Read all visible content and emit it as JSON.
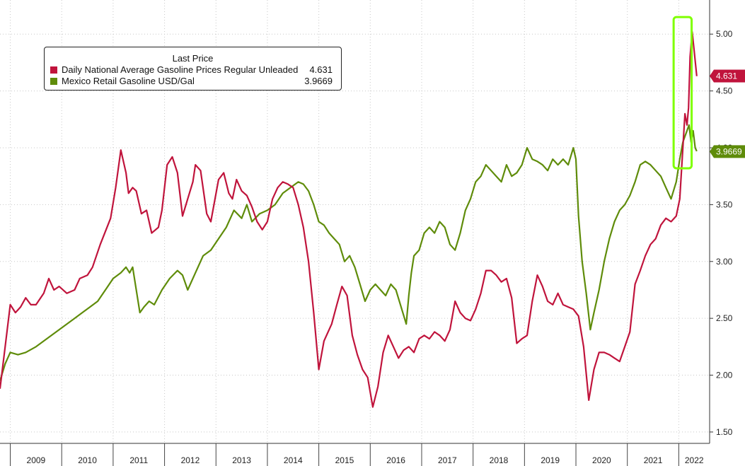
{
  "chart_data": {
    "type": "line",
    "title": "",
    "legend": {
      "title": "Last Price",
      "placement": "top-left"
    },
    "ylim": [
      1.4,
      5.3
    ],
    "y_ticks": [
      "1.50",
      "2.00",
      "2.50",
      "3.00",
      "3.50",
      "4.00",
      "4.50",
      "5.00"
    ],
    "x_ticks": [
      "2009",
      "2010",
      "2011",
      "2012",
      "2013",
      "2014",
      "2015",
      "2016",
      "2017",
      "2018",
      "2019",
      "2020",
      "2021",
      "2022"
    ],
    "x_range": [
      2008.8,
      2022.6
    ],
    "grid": true,
    "highlight_box": {
      "x": [
        2021.9,
        2022.25
      ],
      "y": [
        3.82,
        5.15
      ],
      "color": "#7fff00"
    },
    "series": [
      {
        "name": "Daily National Average Gasoline Prices Regular Unleaded",
        "last_value": "4.631",
        "color": "#c0143c",
        "x": [
          2008.8,
          2008.9,
          2009.0,
          2009.1,
          2009.2,
          2009.3,
          2009.4,
          2009.5,
          2009.65,
          2009.75,
          2009.85,
          2009.95,
          2010.1,
          2010.25,
          2010.35,
          2010.5,
          2010.6,
          2010.75,
          2010.95,
          2011.05,
          2011.15,
          2011.25,
          2011.3,
          2011.38,
          2011.45,
          2011.55,
          2011.65,
          2011.75,
          2011.88,
          2011.95,
          2012.05,
          2012.15,
          2012.25,
          2012.35,
          2012.45,
          2012.55,
          2012.6,
          2012.7,
          2012.82,
          2012.9,
          2013.05,
          2013.15,
          2013.25,
          2013.32,
          2013.4,
          2013.5,
          2013.6,
          2013.7,
          2013.8,
          2013.9,
          2014.0,
          2014.1,
          2014.2,
          2014.3,
          2014.4,
          2014.5,
          2014.6,
          2014.7,
          2014.8,
          2014.9,
          2015.0,
          2015.1,
          2015.25,
          2015.35,
          2015.45,
          2015.55,
          2015.65,
          2015.75,
          2015.85,
          2015.95,
          2016.05,
          2016.15,
          2016.25,
          2016.35,
          2016.45,
          2016.55,
          2016.65,
          2016.75,
          2016.85,
          2016.95,
          2017.05,
          2017.15,
          2017.25,
          2017.35,
          2017.45,
          2017.55,
          2017.65,
          2017.75,
          2017.85,
          2017.95,
          2018.05,
          2018.15,
          2018.25,
          2018.35,
          2018.45,
          2018.55,
          2018.65,
          2018.75,
          2018.85,
          2018.95,
          2019.05,
          2019.15,
          2019.25,
          2019.35,
          2019.45,
          2019.55,
          2019.65,
          2019.75,
          2019.85,
          2019.95,
          2020.05,
          2020.15,
          2020.25,
          2020.35,
          2020.45,
          2020.55,
          2020.65,
          2020.75,
          2020.85,
          2020.95,
          2021.05,
          2021.15,
          2021.25,
          2021.35,
          2021.45,
          2021.55,
          2021.65,
          2021.75,
          2021.85,
          2021.95,
          2022.02,
          2022.08,
          2022.12,
          2022.16,
          2022.19,
          2022.22,
          2022.26,
          2022.3,
          2022.35
        ],
        "values": [
          1.88,
          2.25,
          2.62,
          2.55,
          2.6,
          2.68,
          2.62,
          2.62,
          2.72,
          2.85,
          2.75,
          2.78,
          2.72,
          2.75,
          2.85,
          2.88,
          2.95,
          3.15,
          3.38,
          3.65,
          3.98,
          3.78,
          3.6,
          3.65,
          3.62,
          3.42,
          3.45,
          3.25,
          3.3,
          3.45,
          3.85,
          3.92,
          3.78,
          3.4,
          3.55,
          3.7,
          3.85,
          3.8,
          3.42,
          3.35,
          3.72,
          3.78,
          3.6,
          3.55,
          3.72,
          3.62,
          3.58,
          3.48,
          3.35,
          3.28,
          3.35,
          3.55,
          3.65,
          3.7,
          3.68,
          3.65,
          3.5,
          3.3,
          3.0,
          2.55,
          2.05,
          2.3,
          2.45,
          2.62,
          2.78,
          2.7,
          2.35,
          2.18,
          2.05,
          1.98,
          1.72,
          1.9,
          2.2,
          2.35,
          2.25,
          2.15,
          2.22,
          2.25,
          2.2,
          2.32,
          2.35,
          2.32,
          2.38,
          2.35,
          2.3,
          2.4,
          2.65,
          2.55,
          2.5,
          2.48,
          2.58,
          2.72,
          2.92,
          2.92,
          2.88,
          2.82,
          2.85,
          2.68,
          2.28,
          2.32,
          2.35,
          2.65,
          2.88,
          2.78,
          2.65,
          2.62,
          2.72,
          2.62,
          2.6,
          2.58,
          2.52,
          2.25,
          1.78,
          2.05,
          2.2,
          2.2,
          2.18,
          2.15,
          2.12,
          2.25,
          2.38,
          2.8,
          2.92,
          3.05,
          3.15,
          3.2,
          3.32,
          3.38,
          3.35,
          3.4,
          3.55,
          4.0,
          4.3,
          4.2,
          4.35,
          4.8,
          5.02,
          4.85,
          4.63
        ]
      },
      {
        "name": "Mexico Retail Gasoline USD/Gal",
        "last_value": "3.9669",
        "color": "#5f8c0a",
        "x": [
          2008.8,
          2008.9,
          2009.0,
          2009.15,
          2009.3,
          2009.5,
          2009.65,
          2009.8,
          2009.95,
          2010.1,
          2010.25,
          2010.4,
          2010.55,
          2010.7,
          2010.85,
          2011.0,
          2011.15,
          2011.25,
          2011.32,
          2011.38,
          2011.45,
          2011.52,
          2011.6,
          2011.7,
          2011.8,
          2011.95,
          2012.1,
          2012.25,
          2012.35,
          2012.45,
          2012.6,
          2012.75,
          2012.9,
          2013.05,
          2013.2,
          2013.35,
          2013.5,
          2013.6,
          2013.7,
          2013.85,
          2014.0,
          2014.15,
          2014.3,
          2014.45,
          2014.6,
          2014.7,
          2014.8,
          2014.9,
          2015.0,
          2015.1,
          2015.2,
          2015.3,
          2015.4,
          2015.5,
          2015.6,
          2015.7,
          2015.8,
          2015.9,
          2016.0,
          2016.1,
          2016.2,
          2016.3,
          2016.4,
          2016.5,
          2016.6,
          2016.7,
          2016.75,
          2016.8,
          2016.85,
          2016.95,
          2017.05,
          2017.15,
          2017.25,
          2017.35,
          2017.45,
          2017.55,
          2017.65,
          2017.75,
          2017.85,
          2017.95,
          2018.05,
          2018.15,
          2018.25,
          2018.35,
          2018.45,
          2018.55,
          2018.65,
          2018.75,
          2018.85,
          2018.95,
          2019.05,
          2019.15,
          2019.25,
          2019.35,
          2019.45,
          2019.55,
          2019.65,
          2019.75,
          2019.85,
          2019.95,
          2020.0,
          2020.05,
          2020.12,
          2020.2,
          2020.28,
          2020.35,
          2020.45,
          2020.55,
          2020.65,
          2020.75,
          2020.85,
          2020.95,
          2021.05,
          2021.15,
          2021.25,
          2021.35,
          2021.45,
          2021.55,
          2021.65,
          2021.75,
          2021.85,
          2021.95,
          2022.02,
          2022.08,
          2022.12,
          2022.16,
          2022.2,
          2022.24,
          2022.28,
          2022.32,
          2022.35
        ],
        "values": [
          1.95,
          2.1,
          2.2,
          2.18,
          2.2,
          2.25,
          2.3,
          2.35,
          2.4,
          2.45,
          2.5,
          2.55,
          2.6,
          2.65,
          2.75,
          2.85,
          2.9,
          2.95,
          2.9,
          2.95,
          2.75,
          2.55,
          2.6,
          2.65,
          2.62,
          2.75,
          2.85,
          2.92,
          2.88,
          2.75,
          2.9,
          3.05,
          3.1,
          3.2,
          3.3,
          3.45,
          3.38,
          3.5,
          3.35,
          3.42,
          3.45,
          3.5,
          3.6,
          3.65,
          3.7,
          3.68,
          3.62,
          3.5,
          3.35,
          3.32,
          3.25,
          3.2,
          3.15,
          3.0,
          3.05,
          2.95,
          2.8,
          2.65,
          2.75,
          2.8,
          2.75,
          2.7,
          2.8,
          2.75,
          2.6,
          2.45,
          2.7,
          2.9,
          3.05,
          3.1,
          3.25,
          3.3,
          3.25,
          3.35,
          3.3,
          3.15,
          3.1,
          3.25,
          3.45,
          3.55,
          3.7,
          3.75,
          3.85,
          3.8,
          3.75,
          3.7,
          3.85,
          3.75,
          3.78,
          3.85,
          4.0,
          3.9,
          3.88,
          3.85,
          3.8,
          3.9,
          3.85,
          3.9,
          3.85,
          4.0,
          3.9,
          3.4,
          3.0,
          2.72,
          2.4,
          2.55,
          2.75,
          3.0,
          3.2,
          3.35,
          3.45,
          3.5,
          3.58,
          3.7,
          3.85,
          3.88,
          3.85,
          3.8,
          3.75,
          3.65,
          3.55,
          3.7,
          3.9,
          4.05,
          4.1,
          4.15,
          4.2,
          4.05,
          4.15,
          4.0,
          3.97
        ]
      }
    ]
  }
}
